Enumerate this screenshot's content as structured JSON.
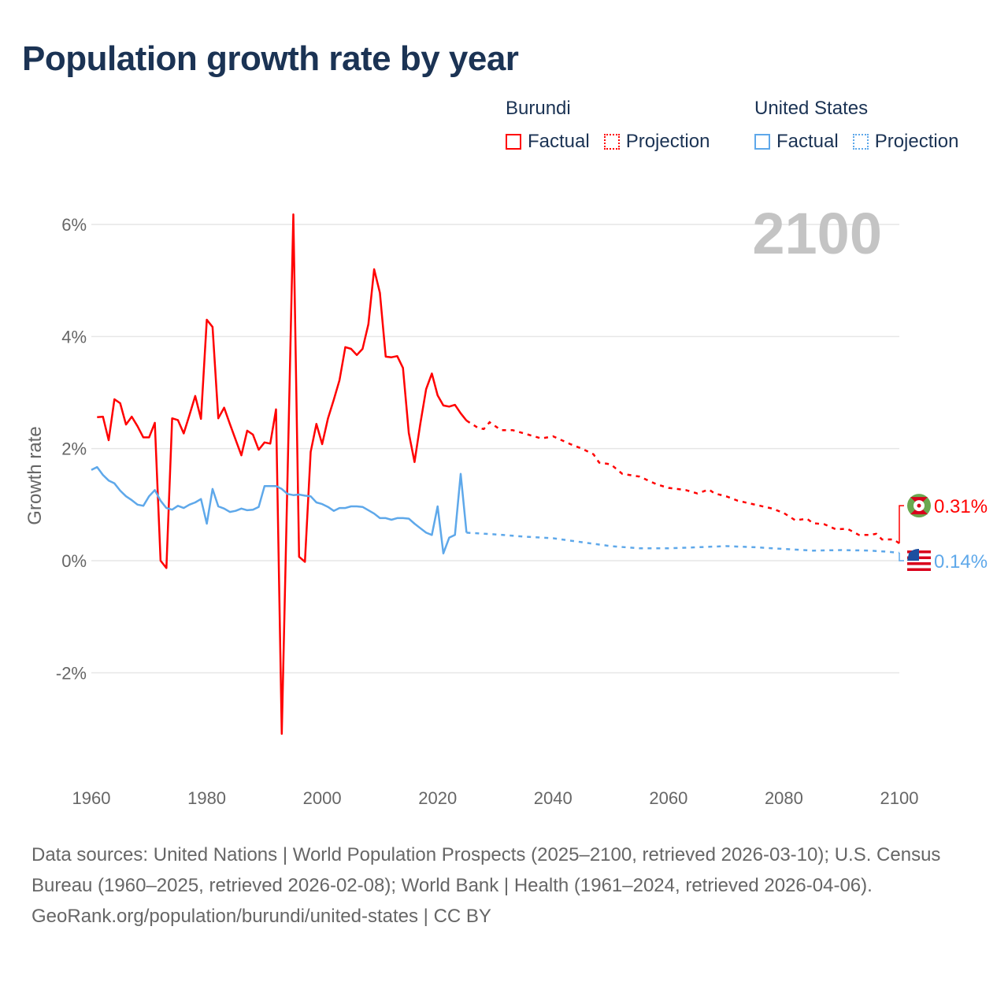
{
  "title": "Population growth rate by year",
  "legend": [
    {
      "country": "Burundi",
      "color": "#ff0000",
      "factual": "Factual",
      "projection": "Projection"
    },
    {
      "country": "United States",
      "color": "#5ea8ea",
      "factual": "Factual",
      "projection": "Projection"
    }
  ],
  "footer": {
    "sources": "Data sources: United Nations | World Population Prospects (2025–2100, retrieved 2026-03-10); U.S. Census Bureau (1960–2025, retrieved 2026-02-08); World Bank | Health (1961–2024, retrieved 2026-04-06).",
    "credit": "GeoRank.org/population/burundi/united-states | CC BY"
  },
  "chart_data": {
    "type": "line",
    "ylabel": "Growth rate",
    "xlabel": "",
    "xlim": [
      1960,
      2100
    ],
    "ylim": [
      -3.2,
      6.2
    ],
    "year_label": "2100",
    "xticks": [
      {
        "v": 1960,
        "label": "1960"
      },
      {
        "v": 1980,
        "label": "1980"
      },
      {
        "v": 2000,
        "label": "2000"
      },
      {
        "v": 2020,
        "label": "2020"
      },
      {
        "v": 2040,
        "label": "2040"
      },
      {
        "v": 2060,
        "label": "2060"
      },
      {
        "v": 2080,
        "label": "2080"
      },
      {
        "v": 2100,
        "label": "2100"
      }
    ],
    "yticks": [
      {
        "v": -2,
        "label": "-2%"
      },
      {
        "v": 0,
        "label": "0%"
      },
      {
        "v": 2,
        "label": "2%"
      },
      {
        "v": 4,
        "label": "4%"
      },
      {
        "v": 6,
        "label": "6%"
      }
    ],
    "grid": true,
    "series": [
      {
        "name": "Burundi",
        "color": "#ff0000",
        "end_label": "0.31%",
        "end_label_value": 0.49,
        "flag": "burundi-flag",
        "factual": [
          [
            1961,
            2.56
          ],
          [
            1962,
            2.57
          ],
          [
            1963,
            2.15
          ],
          [
            1964,
            2.88
          ],
          [
            1965,
            2.81
          ],
          [
            1966,
            2.43
          ],
          [
            1967,
            2.57
          ],
          [
            1968,
            2.4
          ],
          [
            1969,
            2.2
          ],
          [
            1970,
            2.2
          ],
          [
            1971,
            2.46
          ],
          [
            1972,
            0.0
          ],
          [
            1973,
            -0.13
          ],
          [
            1974,
            2.54
          ],
          [
            1975,
            2.51
          ],
          [
            1976,
            2.27
          ],
          [
            1977,
            2.6
          ],
          [
            1978,
            2.94
          ],
          [
            1979,
            2.53
          ],
          [
            1980,
            4.3
          ],
          [
            1981,
            4.17
          ],
          [
            1982,
            2.54
          ],
          [
            1983,
            2.73
          ],
          [
            1984,
            2.44
          ],
          [
            1985,
            2.16
          ],
          [
            1986,
            1.88
          ],
          [
            1987,
            2.32
          ],
          [
            1988,
            2.25
          ],
          [
            1989,
            1.98
          ],
          [
            1990,
            2.11
          ],
          [
            1991,
            2.09
          ],
          [
            1992,
            2.7
          ],
          [
            1993,
            -3.09
          ],
          [
            1994,
            1.55
          ],
          [
            1995,
            6.18
          ],
          [
            1996,
            0.07
          ],
          [
            1997,
            -0.02
          ],
          [
            1998,
            1.94
          ],
          [
            1999,
            2.44
          ],
          [
            2000,
            2.08
          ],
          [
            2001,
            2.54
          ],
          [
            2002,
            2.87
          ],
          [
            2003,
            3.22
          ],
          [
            2004,
            3.81
          ],
          [
            2005,
            3.78
          ],
          [
            2006,
            3.67
          ],
          [
            2007,
            3.78
          ],
          [
            2008,
            4.22
          ],
          [
            2009,
            5.2
          ],
          [
            2010,
            4.78
          ],
          [
            2011,
            3.64
          ],
          [
            2012,
            3.63
          ],
          [
            2013,
            3.65
          ],
          [
            2014,
            3.44
          ],
          [
            2015,
            2.28
          ],
          [
            2016,
            1.76
          ],
          [
            2017,
            2.44
          ],
          [
            2018,
            3.06
          ],
          [
            2019,
            3.34
          ],
          [
            2020,
            2.95
          ],
          [
            2021,
            2.77
          ],
          [
            2022,
            2.75
          ],
          [
            2023,
            2.78
          ],
          [
            2024,
            2.63
          ],
          [
            2025,
            2.5
          ]
        ],
        "projection": [
          [
            2025,
            2.5
          ],
          [
            2027,
            2.37
          ],
          [
            2028,
            2.35
          ],
          [
            2029,
            2.47
          ],
          [
            2031,
            2.33
          ],
          [
            2033,
            2.33
          ],
          [
            2035,
            2.27
          ],
          [
            2038,
            2.18
          ],
          [
            2040,
            2.22
          ],
          [
            2043,
            2.08
          ],
          [
            2045,
            2.0
          ],
          [
            2047,
            1.9
          ],
          [
            2048,
            1.75
          ],
          [
            2050,
            1.72
          ],
          [
            2052,
            1.55
          ],
          [
            2055,
            1.5
          ],
          [
            2058,
            1.36
          ],
          [
            2060,
            1.3
          ],
          [
            2063,
            1.26
          ],
          [
            2065,
            1.2
          ],
          [
            2067,
            1.27
          ],
          [
            2068,
            1.2
          ],
          [
            2070,
            1.15
          ],
          [
            2072,
            1.07
          ],
          [
            2075,
            1.0
          ],
          [
            2078,
            0.93
          ],
          [
            2080,
            0.85
          ],
          [
            2082,
            0.72
          ],
          [
            2084,
            0.75
          ],
          [
            2085,
            0.67
          ],
          [
            2087,
            0.65
          ],
          [
            2089,
            0.56
          ],
          [
            2091,
            0.57
          ],
          [
            2093,
            0.46
          ],
          [
            2095,
            0.46
          ],
          [
            2096,
            0.48
          ],
          [
            2097,
            0.38
          ],
          [
            2099,
            0.38
          ],
          [
            2100,
            0.31
          ]
        ]
      },
      {
        "name": "United States",
        "color": "#5ea8ea",
        "end_label": "0.14%",
        "end_label_value": 0.0,
        "flag": "us-flag",
        "factual": [
          [
            1960,
            1.62
          ],
          [
            1961,
            1.67
          ],
          [
            1962,
            1.53
          ],
          [
            1963,
            1.43
          ],
          [
            1964,
            1.38
          ],
          [
            1965,
            1.25
          ],
          [
            1966,
            1.15
          ],
          [
            1967,
            1.08
          ],
          [
            1968,
            1.0
          ],
          [
            1969,
            0.98
          ],
          [
            1970,
            1.15
          ],
          [
            1971,
            1.26
          ],
          [
            1972,
            1.07
          ],
          [
            1973,
            0.94
          ],
          [
            1974,
            0.91
          ],
          [
            1975,
            0.98
          ],
          [
            1976,
            0.94
          ],
          [
            1977,
            1.0
          ],
          [
            1978,
            1.04
          ],
          [
            1979,
            1.1
          ],
          [
            1980,
            0.66
          ],
          [
            1981,
            1.28
          ],
          [
            1982,
            0.97
          ],
          [
            1983,
            0.93
          ],
          [
            1984,
            0.87
          ],
          [
            1985,
            0.89
          ],
          [
            1986,
            0.93
          ],
          [
            1987,
            0.9
          ],
          [
            1988,
            0.91
          ],
          [
            1989,
            0.96
          ],
          [
            1990,
            1.33
          ],
          [
            1991,
            1.33
          ],
          [
            1992,
            1.33
          ],
          [
            1993,
            1.28
          ],
          [
            1994,
            1.19
          ],
          [
            1995,
            1.17
          ],
          [
            1996,
            1.18
          ],
          [
            1997,
            1.16
          ],
          [
            1998,
            1.15
          ],
          [
            1999,
            1.04
          ],
          [
            2000,
            1.01
          ],
          [
            2001,
            0.96
          ],
          [
            2002,
            0.89
          ],
          [
            2003,
            0.94
          ],
          [
            2004,
            0.94
          ],
          [
            2005,
            0.97
          ],
          [
            2006,
            0.97
          ],
          [
            2007,
            0.96
          ],
          [
            2008,
            0.9
          ],
          [
            2009,
            0.84
          ],
          [
            2010,
            0.76
          ],
          [
            2011,
            0.76
          ],
          [
            2012,
            0.73
          ],
          [
            2013,
            0.76
          ],
          [
            2014,
            0.76
          ],
          [
            2015,
            0.75
          ],
          [
            2016,
            0.66
          ],
          [
            2017,
            0.58
          ],
          [
            2018,
            0.5
          ],
          [
            2019,
            0.46
          ],
          [
            2020,
            0.97
          ],
          [
            2021,
            0.13
          ],
          [
            2022,
            0.41
          ],
          [
            2023,
            0.46
          ],
          [
            2024,
            1.55
          ],
          [
            2025,
            0.5
          ]
        ],
        "projection": [
          [
            2025,
            0.5
          ],
          [
            2030,
            0.47
          ],
          [
            2035,
            0.43
          ],
          [
            2040,
            0.4
          ],
          [
            2045,
            0.33
          ],
          [
            2050,
            0.26
          ],
          [
            2055,
            0.22
          ],
          [
            2060,
            0.22
          ],
          [
            2065,
            0.24
          ],
          [
            2070,
            0.26
          ],
          [
            2075,
            0.24
          ],
          [
            2080,
            0.21
          ],
          [
            2085,
            0.18
          ],
          [
            2090,
            0.19
          ],
          [
            2095,
            0.18
          ],
          [
            2098,
            0.16
          ],
          [
            2100,
            0.14
          ]
        ]
      }
    ]
  }
}
